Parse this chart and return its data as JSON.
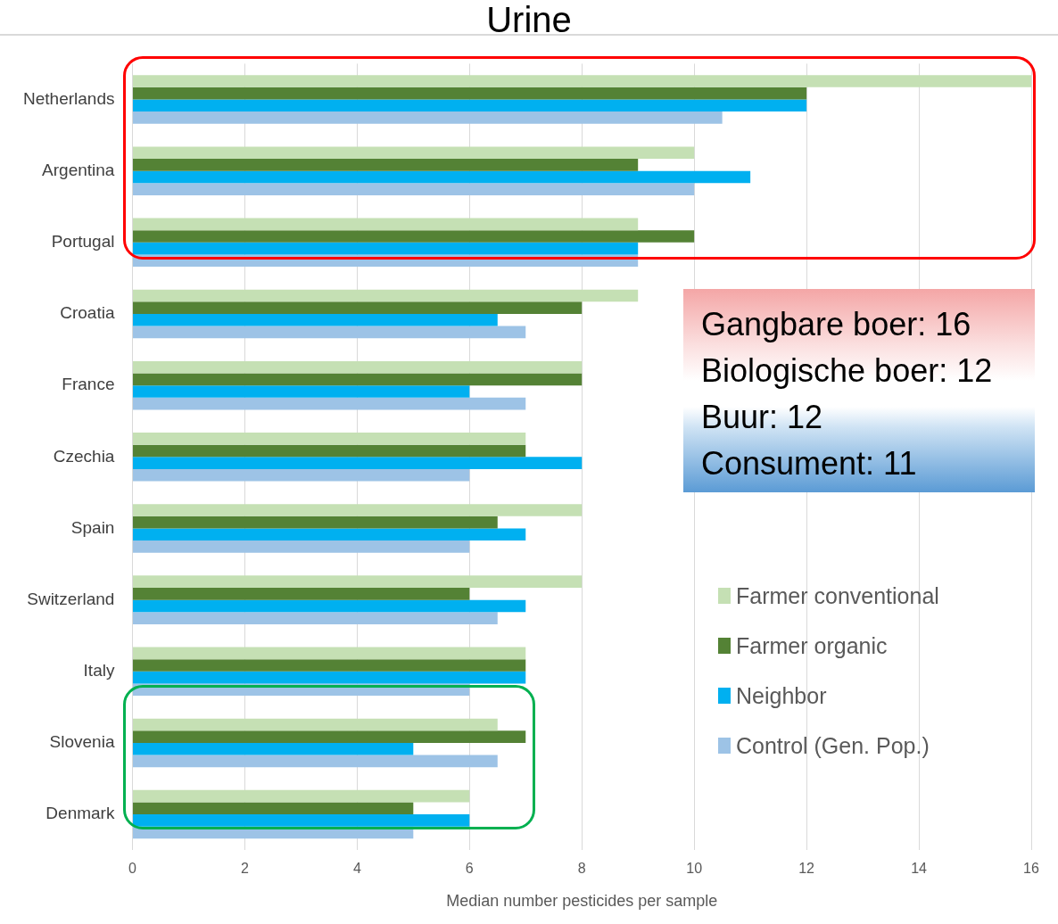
{
  "chart_data": {
    "type": "bar",
    "orientation": "horizontal",
    "title": "Urine",
    "xlabel": "Median number pesticides per sample",
    "categories": [
      "Netherlands",
      "Argentina",
      "Portugal",
      "Croatia",
      "France",
      "Czechia",
      "Spain",
      "Switzerland",
      "Italy",
      "Slovenia",
      "Denmark"
    ],
    "series": [
      {
        "name": "Farmer conventional",
        "color": "#c5e0b4",
        "values": [
          16,
          10,
          9,
          9,
          8,
          7,
          8,
          8,
          7,
          6.5,
          6
        ]
      },
      {
        "name": "Farmer organic",
        "color": "#548235",
        "values": [
          12,
          9,
          10,
          8,
          8,
          7,
          6.5,
          6,
          7,
          7,
          5
        ]
      },
      {
        "name": "Neighbor",
        "color": "#00b0f0",
        "values": [
          12,
          11,
          9,
          6.5,
          6,
          8,
          7,
          7,
          7,
          5,
          6
        ]
      },
      {
        "name": "Control (Gen. Pop.)",
        "color": "#9dc3e6",
        "values": [
          10.5,
          10,
          9,
          7,
          7,
          6,
          6,
          6.5,
          6,
          6.5,
          5
        ]
      }
    ],
    "xlim": [
      0,
      16
    ],
    "xticks": [
      0,
      2,
      4,
      6,
      8,
      10,
      12,
      14,
      16
    ],
    "grid": "x",
    "legend": "bottom right",
    "annotations": [
      "Gangbare boer: 16",
      "Biologische boer: 12",
      "Buur: 12",
      "Consument: 11"
    ]
  }
}
